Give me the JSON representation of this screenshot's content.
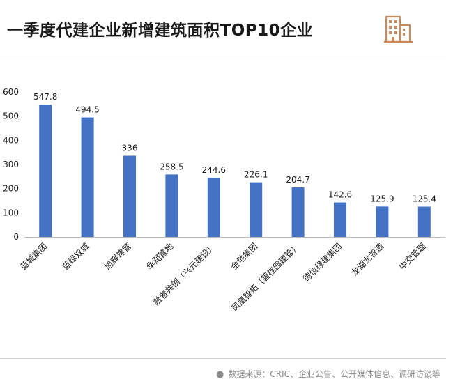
{
  "header": {
    "title": "一季度代建企业新增建筑面积TOP10企业",
    "icon": "building-icon"
  },
  "footer": {
    "source": "数据来源：CRIC、企业公告、公开媒体信息、调研访谈等"
  },
  "colors": {
    "bar": "#4472c4",
    "icon": "#c98a5e",
    "axis": "#bfbfbf"
  },
  "chart_data": {
    "type": "bar",
    "title": "一季度代建企业新增建筑面积TOP10企业",
    "categories": [
      "蓝城集团",
      "蓝绿双城",
      "旭辉建管",
      "华润置地",
      "融者共创（兴元建设）",
      "金地集团",
      "凤凰智拓（碧桂园建管）",
      "德信绿建集团",
      "龙湖龙智造",
      "中交管理"
    ],
    "values": [
      547.8,
      494.5,
      336,
      258.5,
      244.6,
      226.1,
      204.7,
      142.6,
      125.9,
      125.4
    ],
    "value_labels": [
      "547.8",
      "494.5",
      "336",
      "258.5",
      "244.6",
      "226.1",
      "204.7",
      "142.6",
      "125.9",
      "125.4"
    ],
    "yticks": [
      "0",
      "100",
      "200",
      "300",
      "400",
      "500",
      "600"
    ],
    "ylim": [
      0,
      600
    ],
    "xlabel": "",
    "ylabel": "",
    "grid": false,
    "legend": "none"
  }
}
